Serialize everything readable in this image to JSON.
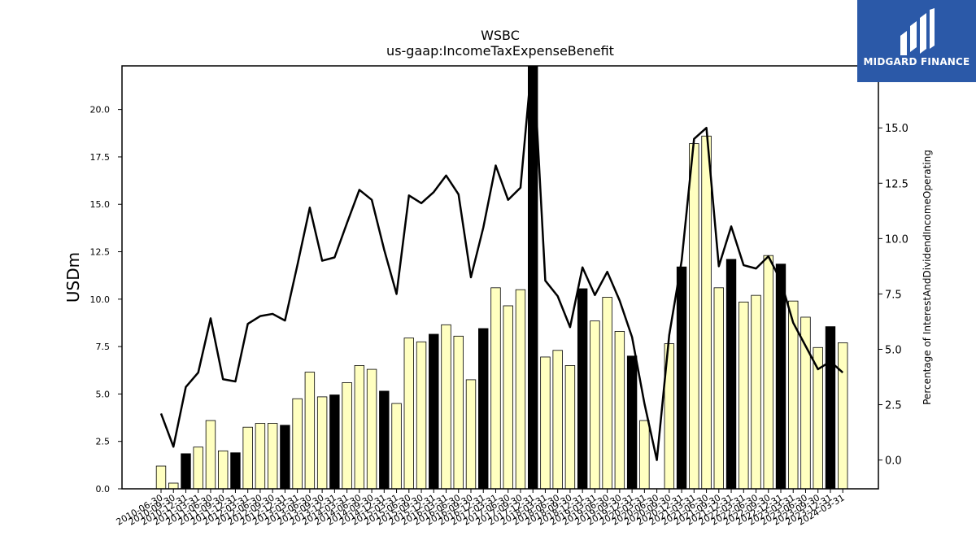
{
  "brand": {
    "name": "MIDGARD FINANCE",
    "logo_icon": "midgard-m-logo-icon",
    "background": "#2b59a8"
  },
  "chart_data": {
    "type": "bar+line",
    "title": "WSBC",
    "subtitle": "us-gaap:IncomeTaxExpenseBenefit",
    "ylabel": "USDm",
    "y2label": "Percentage of InterestAndDividendIncomeOperating",
    "ylim": [
      0,
      22.3
    ],
    "y2lim": [
      -1.3,
      17.8
    ],
    "yticks": [
      "0.0",
      "2.5",
      "5.0",
      "7.5",
      "10.0",
      "12.5",
      "15.0",
      "17.5",
      "20.0"
    ],
    "y2ticks": [
      "0.0",
      "2.5",
      "5.0",
      "7.5",
      "10.0",
      "12.5",
      "15.0",
      "17.5"
    ],
    "grid": false,
    "colors": {
      "bar_quarter": "#ffffc0",
      "bar_fiscal_q4": "#000000",
      "line": "#000000",
      "edge": "#000000"
    },
    "categories": [
      "2010-06-30",
      "2010-09-30",
      "2010-12-31",
      "2011-03-31",
      "2011-06-30",
      "2011-09-30",
      "2011-12-31",
      "2012-03-31",
      "2012-06-30",
      "2012-09-30",
      "2012-12-31",
      "2013-03-31",
      "2013-06-30",
      "2013-09-30",
      "2013-12-31",
      "2014-03-31",
      "2014-06-30",
      "2014-09-30",
      "2014-12-31",
      "2015-03-31",
      "2015-06-30",
      "2015-09-30",
      "2015-12-31",
      "2016-03-31",
      "2016-06-30",
      "2016-09-30",
      "2016-12-31",
      "2017-03-31",
      "2017-06-30",
      "2017-09-30",
      "2017-12-31",
      "2018-03-31",
      "2018-06-30",
      "2018-09-30",
      "2018-12-31",
      "2019-03-31",
      "2019-06-30",
      "2019-09-30",
      "2019-12-31",
      "2020-03-31",
      "2020-06-30",
      "2020-09-30",
      "2020-12-31",
      "2021-03-31",
      "2021-06-30",
      "2021-09-30",
      "2021-12-31",
      "2022-03-31",
      "2022-06-30",
      "2022-09-30",
      "2022-12-31",
      "2023-03-31",
      "2023-06-30",
      "2023-09-30",
      "2023-12-31",
      "2024-03-31"
    ],
    "tick_labels": [
      "2010-06-30",
      "2010-09-30",
      "2010-12-31",
      "2011-03-31",
      "2011-06-30",
      "2011-09-30",
      "2011-12-31",
      "2012-03-31",
      "2012-06-30",
      "2012-09-30",
      "2012-12-31",
      "2013-03-31",
      "2013-06-30",
      "2013-09-30",
      "2013-12-31",
      "2014-03-31",
      "2014-06-30",
      "2014-09-30",
      "2014-12-31",
      "2015-03-31",
      "2015-06-30",
      "2015-09-30",
      "2015-12-31",
      "2016-03-31",
      "2016-06-30",
      "2016-09-30",
      "2016-12-31",
      "2017-03-31",
      "2017-06-30",
      "2017-09-30",
      "2017-12-31",
      "2018-03-31",
      "2018-06-30",
      "2018-09-30",
      "2018-12-31",
      "2019-03-31",
      "2019-06-30",
      "2019-09-30",
      "2019-12-31",
      "2020-03-31",
      "2020-06-30",
      "2020-09-30",
      "2020-12-31",
      "2021-03-31",
      "2021-06-30",
      "2021-09-30",
      "2021-12-31",
      "2022-03-31",
      "2022-06-30",
      "2022-09-30",
      "2022-12-31",
      "2023-03-31",
      "2023-06-30",
      "2023-09-30",
      "2023-12-31",
      "2024-03-31"
    ],
    "series": [
      {
        "type": "bar",
        "values": [
          1.2,
          0.3,
          1.85,
          2.2,
          3.6,
          2.0,
          1.9,
          3.25,
          3.45,
          3.45,
          3.35,
          4.75,
          6.15,
          4.85,
          4.95,
          5.6,
          6.5,
          6.3,
          5.15,
          4.5,
          7.95,
          7.75,
          8.15,
          8.65,
          8.05,
          5.75,
          8.45,
          10.6,
          9.65,
          10.5,
          23.0,
          6.95,
          7.3,
          6.5,
          10.55,
          8.85,
          10.1,
          8.3,
          7.0,
          3.6,
          0.0,
          7.65,
          11.7,
          18.2,
          18.6,
          10.6,
          12.1,
          9.85,
          10.2,
          12.3,
          11.85,
          9.9,
          9.05,
          7.45,
          8.55,
          7.7
        ],
        "fiscal_q4": [
          false,
          false,
          true,
          false,
          false,
          false,
          true,
          false,
          false,
          false,
          true,
          false,
          false,
          false,
          true,
          false,
          false,
          false,
          true,
          false,
          false,
          false,
          true,
          false,
          false,
          false,
          true,
          false,
          false,
          false,
          true,
          false,
          false,
          false,
          true,
          false,
          false,
          false,
          true,
          false,
          false,
          false,
          true,
          false,
          false,
          false,
          true,
          false,
          false,
          false,
          true,
          false,
          false,
          false,
          true,
          false
        ]
      },
      {
        "type": "line",
        "axis": "right",
        "values": [
          2.1,
          0.6,
          3.3,
          3.95,
          6.4,
          3.65,
          3.55,
          6.15,
          6.5,
          6.6,
          6.3,
          8.8,
          11.4,
          9.0,
          9.15,
          10.7,
          12.2,
          11.75,
          9.5,
          7.5,
          11.95,
          11.6,
          12.1,
          12.85,
          12.0,
          8.25,
          10.5,
          13.3,
          11.75,
          12.3,
          18.5,
          8.1,
          7.4,
          6.0,
          8.7,
          7.45,
          8.5,
          7.2,
          5.55,
          2.55,
          0.0,
          5.65,
          9.0,
          14.5,
          15.0,
          8.75,
          10.55,
          8.8,
          8.65,
          9.2,
          8.1,
          6.2,
          5.15,
          4.1,
          4.45,
          3.95
        ]
      }
    ]
  }
}
